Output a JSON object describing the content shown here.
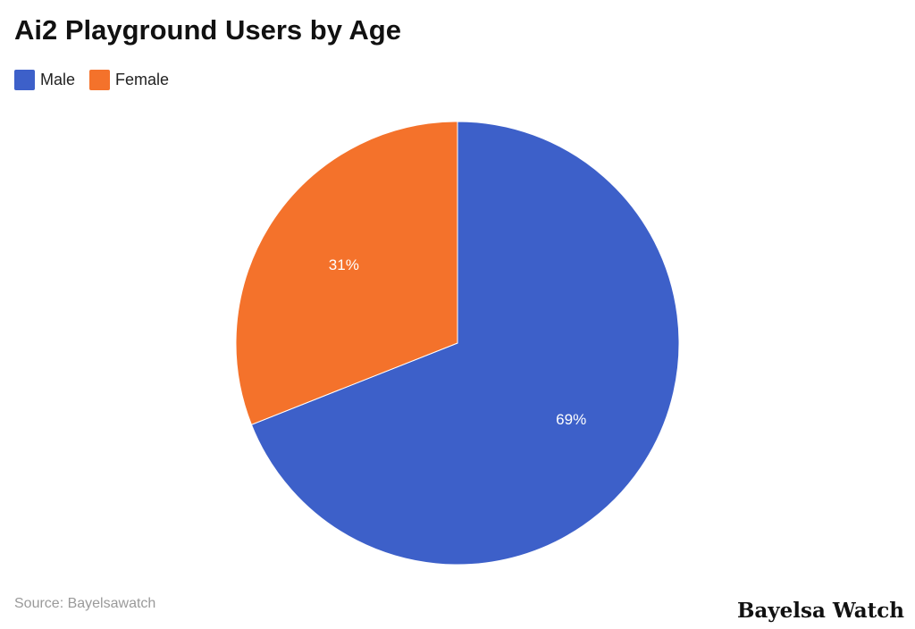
{
  "chart_data": {
    "type": "pie",
    "title": "Ai2 Playground Users by Age",
    "categories": [
      "Male",
      "Female"
    ],
    "values": [
      69,
      31
    ],
    "value_labels": [
      "69%",
      "31%"
    ],
    "colors": [
      "#3d60c9",
      "#f4722b"
    ],
    "legend_position": "top-left",
    "start_angle": "12 o'clock",
    "direction": "clockwise"
  },
  "legend": {
    "items": [
      {
        "label": "Male",
        "color": "#3d60c9"
      },
      {
        "label": "Female",
        "color": "#f4722b"
      }
    ]
  },
  "footer": {
    "source": "Source: Bayelsawatch",
    "brand": "Bayelsa Watch"
  }
}
